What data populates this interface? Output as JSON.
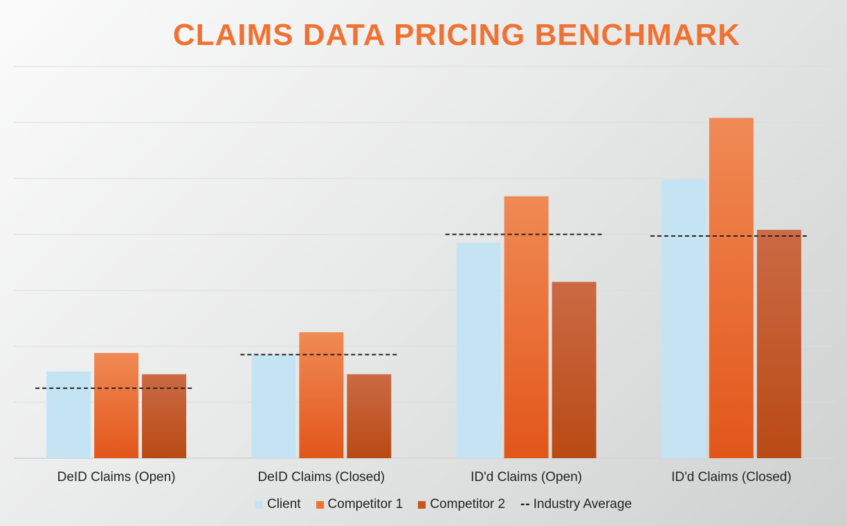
{
  "chart_data": {
    "type": "bar",
    "title": "CLAIMS DATA PRICING BENCHMARK",
    "categories": [
      "DeID Claims (Open)",
      "DeID Claims (Closed)",
      "ID'd Claims (Open)",
      "ID'd Claims (Closed)"
    ],
    "series": [
      {
        "name": "Client",
        "values": [
          1.55,
          1.85,
          3.85,
          4.98
        ],
        "color": "#c5e4f3"
      },
      {
        "name": "Competitor 1",
        "values": [
          1.88,
          2.25,
          4.68,
          6.08
        ],
        "color": "#f07230"
      },
      {
        "name": "Competitor 2",
        "values": [
          1.5,
          1.5,
          3.15,
          4.08
        ],
        "color": "#c8541e"
      }
    ],
    "lines": [
      {
        "name": "Industry Average",
        "values": [
          1.25,
          1.85,
          4.0,
          3.97
        ],
        "style": "dashed",
        "color": "#222222"
      }
    ],
    "ylim": [
      0,
      7
    ],
    "grid": true,
    "legend_position": "bottom",
    "title_color": "#ef7233"
  }
}
